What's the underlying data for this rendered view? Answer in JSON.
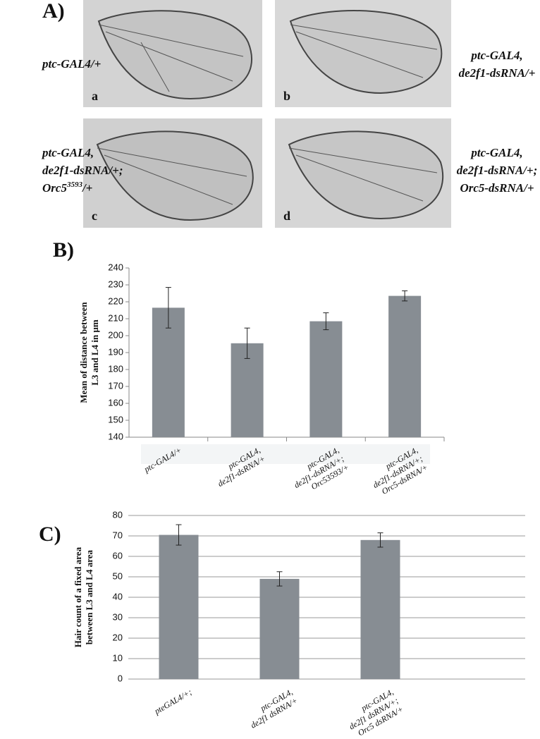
{
  "figure": {
    "label": "A)",
    "wings": [
      {
        "letter": "a",
        "genotype": [
          "ptc-GAL4/+"
        ]
      },
      {
        "letter": "b",
        "genotype": [
          "ptc-GAL4,",
          "de2f1-dsRNA/+"
        ]
      },
      {
        "letter": "c",
        "genotype": [
          "ptc-GAL4,",
          "de2f1-dsRNA/+;",
          [
            "Orc5",
            "3593",
            "/+"
          ]
        ]
      },
      {
        "letter": "d",
        "genotype": [
          "ptc-GAL4,",
          "de2f1-dsRNA/+;",
          "Orc5-dsRNA/+"
        ]
      }
    ]
  },
  "chart_data": [
    {
      "type": "bar",
      "label": "B)",
      "ylabel": [
        "Mean of distance between",
        "L3 and L4 in μm"
      ],
      "categories": [
        [
          "ptc-GAL4/+"
        ],
        [
          "ptc-GAL4,",
          "de2f1-dsRNA/+"
        ],
        [
          "ptc-GAL4,",
          "de2f1-dsRNA/+;",
          "Orc53593/+"
        ],
        [
          "ptc-GAL4,",
          "de2f1-dsRNA/+;",
          "Orc5-dsRNA/+"
        ]
      ],
      "values": [
        216.5,
        195.5,
        208.5,
        223.5
      ],
      "errors": [
        12,
        9,
        5,
        3
      ],
      "color": "#878d93",
      "ylim": [
        140,
        240
      ],
      "yticks": [
        140,
        150,
        160,
        170,
        180,
        190,
        200,
        210,
        220,
        230,
        240
      ],
      "grid": false
    },
    {
      "type": "bar",
      "label": "C)",
      "ylabel": [
        "Hair count of a fixed area",
        "between L3 and L4 area"
      ],
      "categories": [
        [
          "pteGAL4/+;"
        ],
        [
          "ptc-GAL4,",
          "de2f1 dsRNA/+"
        ],
        [
          "ptc-GAL4,",
          "de2f1 dsRNA/+;",
          "Orc5 dsRNA/+"
        ]
      ],
      "values": [
        70.5,
        49,
        68
      ],
      "errors": [
        5,
        3.5,
        3.5
      ],
      "color": "#878d93",
      "ylim": [
        0,
        80
      ],
      "yticks": [
        0,
        10,
        20,
        30,
        40,
        50,
        60,
        70,
        80
      ],
      "grid": true
    }
  ]
}
